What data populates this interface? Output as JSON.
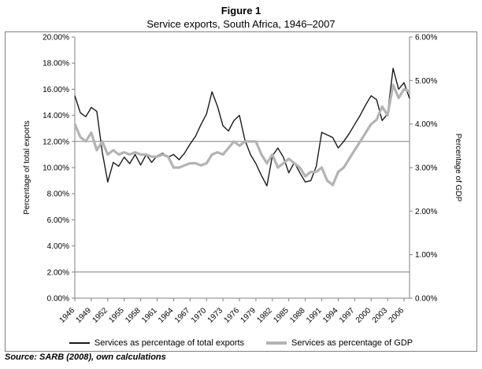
{
  "figure": {
    "title": "Figure 1",
    "subtitle": "Service exports, South Africa, 1946–2007",
    "source": "Source: SARB (2008), own calculations"
  },
  "chart_data": {
    "type": "line",
    "title": "Figure 1",
    "subtitle": "Service exports, South Africa, 1946–2007",
    "x_start": 1946,
    "x_end": 2007,
    "x_tick_labels": [
      "1946",
      "1949",
      "1952",
      "1955",
      "1958",
      "1961",
      "1964",
      "1967",
      "1970",
      "1973",
      "1976",
      "1979",
      "1982",
      "1985",
      "1988",
      "1991",
      "1994",
      "1997",
      "2000",
      "2003",
      "2006"
    ],
    "left_axis": {
      "label": "Percentage of total exports",
      "min": 0,
      "max": 20,
      "tick_step": 2,
      "ticks": [
        "0.00%",
        "2.00%",
        "4.00%",
        "6.00%",
        "8.00%",
        "10.00%",
        "12.00%",
        "14.00%",
        "16.00%",
        "18.00%",
        "20.00%"
      ]
    },
    "right_axis": {
      "label": "Percentage of GDP",
      "min": 0,
      "max": 6,
      "tick_step": 1,
      "ticks": [
        "0.00%",
        "1.00%",
        "2.00%",
        "3.00%",
        "4.00%",
        "5.00%",
        "6.00%"
      ]
    },
    "gridlines_left_values": [
      2,
      12
    ],
    "legend_position": "bottom",
    "series": [
      {
        "name": "Services as percentage of total exports",
        "axis": "left",
        "color": "#1a1a1a",
        "stroke_width": 1.4,
        "values": [
          15.5,
          14.2,
          13.9,
          14.6,
          14.3,
          11.2,
          8.9,
          10.4,
          10.1,
          10.8,
          10.3,
          11.0,
          10.2,
          11.0,
          10.4,
          10.9,
          11.1,
          10.8,
          11.0,
          10.6,
          11.1,
          11.8,
          12.4,
          13.3,
          14.1,
          15.8,
          14.7,
          13.2,
          12.8,
          13.6,
          14.0,
          12.1,
          11.0,
          10.3,
          9.4,
          8.6,
          10.9,
          11.5,
          10.8,
          9.6,
          10.4,
          9.6,
          8.9,
          9.0,
          10.1,
          12.7,
          12.5,
          12.3,
          11.5,
          12.0,
          12.6,
          13.3,
          14.0,
          14.8,
          15.5,
          15.2,
          13.6,
          14.1,
          17.6,
          16.0,
          16.5,
          15.3
        ]
      },
      {
        "name": "Services as percentage of GDP",
        "axis": "right",
        "color": "#b3b3b3",
        "stroke_width": 3.2,
        "values": [
          4.0,
          3.7,
          3.6,
          3.8,
          3.4,
          3.6,
          3.3,
          3.4,
          3.3,
          3.35,
          3.3,
          3.35,
          3.3,
          3.3,
          3.25,
          3.25,
          3.3,
          3.25,
          3.0,
          3.0,
          3.05,
          3.1,
          3.1,
          3.05,
          3.1,
          3.3,
          3.35,
          3.3,
          3.45,
          3.6,
          3.5,
          3.6,
          3.6,
          3.6,
          3.3,
          3.1,
          3.3,
          3.0,
          3.1,
          3.2,
          3.1,
          3.0,
          2.8,
          2.9,
          2.9,
          3.0,
          2.7,
          2.6,
          2.9,
          3.0,
          3.2,
          3.4,
          3.6,
          3.8,
          4.0,
          4.1,
          4.4,
          4.2,
          4.9,
          4.6,
          4.8,
          4.75
        ]
      }
    ]
  }
}
